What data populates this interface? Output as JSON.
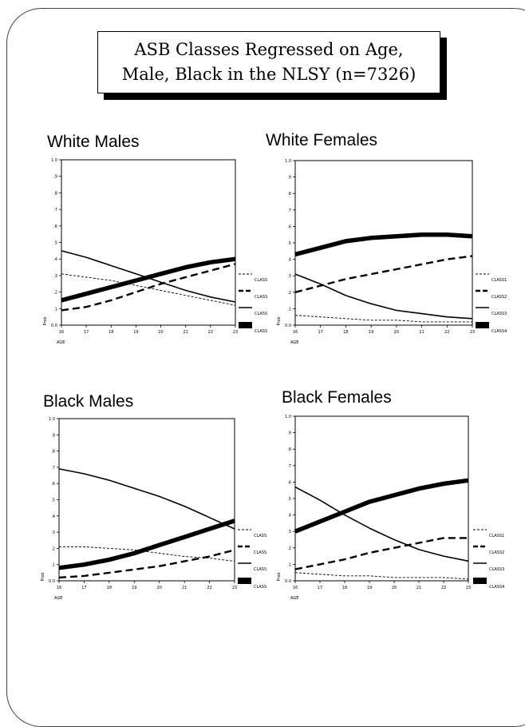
{
  "title": {
    "line1": "ASB Classes Regressed on Age,",
    "line2": "Male, Black in the NLSY (n=7326)"
  },
  "chart_data": [
    {
      "type": "line",
      "title": "White Males",
      "xlabel": "AGE",
      "ylabel": "Prob",
      "x": [
        16,
        17,
        18,
        19,
        20,
        21,
        22,
        23
      ],
      "x_ticks": [
        "16",
        "17",
        "18",
        "19",
        "20",
        "21",
        "22",
        "23"
      ],
      "ylim": [
        0,
        1
      ],
      "y_ticks": [
        "0.0",
        ".1",
        ".2",
        ".3",
        ".4",
        ".5",
        ".6",
        ".7",
        ".8",
        ".9",
        "1.0"
      ],
      "series": [
        {
          "name": "CLASS",
          "style": "thin-dashed",
          "values": [
            0.31,
            0.29,
            0.27,
            0.24,
            0.21,
            0.18,
            0.15,
            0.12
          ]
        },
        {
          "name": "CLASS",
          "style": "thick-dashed",
          "values": [
            0.09,
            0.11,
            0.15,
            0.2,
            0.25,
            0.29,
            0.33,
            0.37
          ]
        },
        {
          "name": "CLASS",
          "style": "solid",
          "values": [
            0.45,
            0.41,
            0.36,
            0.31,
            0.26,
            0.21,
            0.17,
            0.14
          ]
        },
        {
          "name": "CLASS",
          "style": "bold",
          "values": [
            0.15,
            0.19,
            0.23,
            0.27,
            0.31,
            0.35,
            0.38,
            0.4
          ]
        }
      ]
    },
    {
      "type": "line",
      "title": "White Females",
      "xlabel": "AGE",
      "ylabel": "Prob",
      "x": [
        16,
        17,
        18,
        19,
        20,
        21,
        22,
        23
      ],
      "x_ticks": [
        "16",
        "17",
        "18",
        "19",
        "20",
        "21",
        "22",
        "23"
      ],
      "ylim": [
        0,
        1
      ],
      "y_ticks": [
        "0.0",
        ".1",
        ".2",
        ".3",
        ".4",
        ".5",
        ".6",
        ".7",
        ".8",
        ".9",
        "1.0"
      ],
      "series": [
        {
          "name": "CLASS1",
          "style": "thin-dashed",
          "values": [
            0.06,
            0.05,
            0.04,
            0.03,
            0.03,
            0.02,
            0.02,
            0.02
          ]
        },
        {
          "name": "CLASS2",
          "style": "thick-dashed",
          "values": [
            0.2,
            0.24,
            0.28,
            0.31,
            0.34,
            0.37,
            0.4,
            0.42
          ]
        },
        {
          "name": "CLASS3",
          "style": "solid",
          "values": [
            0.31,
            0.25,
            0.18,
            0.13,
            0.09,
            0.07,
            0.05,
            0.04
          ]
        },
        {
          "name": "CLASS4",
          "style": "bold",
          "values": [
            0.43,
            0.47,
            0.51,
            0.53,
            0.54,
            0.55,
            0.55,
            0.54
          ]
        }
      ]
    },
    {
      "type": "line",
      "title": "Black Males",
      "xlabel": "AGE",
      "ylabel": "Prob",
      "x": [
        16,
        17,
        18,
        19,
        20,
        21,
        22,
        23
      ],
      "x_ticks": [
        "16",
        "17",
        "18",
        "19",
        "20",
        "21",
        "22",
        "23"
      ],
      "ylim": [
        0,
        1
      ],
      "y_ticks": [
        "0.0",
        ".1",
        ".2",
        ".3",
        ".4",
        ".5",
        ".6",
        ".7",
        ".8",
        ".9",
        "1.0"
      ],
      "series": [
        {
          "name": "CLASS",
          "style": "thin-dashed",
          "values": [
            0.21,
            0.21,
            0.2,
            0.19,
            0.17,
            0.15,
            0.14,
            0.12
          ]
        },
        {
          "name": "CLASS",
          "style": "thick-dashed",
          "values": [
            0.02,
            0.03,
            0.05,
            0.07,
            0.09,
            0.12,
            0.15,
            0.19
          ]
        },
        {
          "name": "CLASS",
          "style": "solid",
          "values": [
            0.69,
            0.66,
            0.62,
            0.57,
            0.52,
            0.46,
            0.39,
            0.32
          ]
        },
        {
          "name": "CLASS",
          "style": "bold",
          "values": [
            0.08,
            0.1,
            0.13,
            0.17,
            0.22,
            0.27,
            0.32,
            0.37
          ]
        }
      ]
    },
    {
      "type": "line",
      "title": "Black Females",
      "xlabel": "AGE",
      "ylabel": "Prob",
      "x": [
        16,
        17,
        18,
        19,
        20,
        21,
        22,
        23
      ],
      "x_ticks": [
        "16",
        "17",
        "18",
        "19",
        "20",
        "21",
        "22",
        "23"
      ],
      "ylim": [
        0,
        1
      ],
      "y_ticks": [
        "0.0",
        ".1",
        ".2",
        ".3",
        ".4",
        ".5",
        ".6",
        ".7",
        ".8",
        ".9",
        "1.0"
      ],
      "series": [
        {
          "name": "CLASS1",
          "style": "thin-dashed",
          "values": [
            0.05,
            0.04,
            0.03,
            0.03,
            0.02,
            0.02,
            0.02,
            0.01
          ]
        },
        {
          "name": "CLASS2",
          "style": "thick-dashed",
          "values": [
            0.07,
            0.1,
            0.13,
            0.17,
            0.2,
            0.23,
            0.26,
            0.26
          ]
        },
        {
          "name": "CLASS3",
          "style": "solid",
          "values": [
            0.57,
            0.49,
            0.4,
            0.32,
            0.25,
            0.19,
            0.15,
            0.12
          ]
        },
        {
          "name": "CLASS4",
          "style": "bold",
          "values": [
            0.3,
            0.36,
            0.42,
            0.48,
            0.52,
            0.56,
            0.59,
            0.61
          ]
        }
      ]
    }
  ]
}
